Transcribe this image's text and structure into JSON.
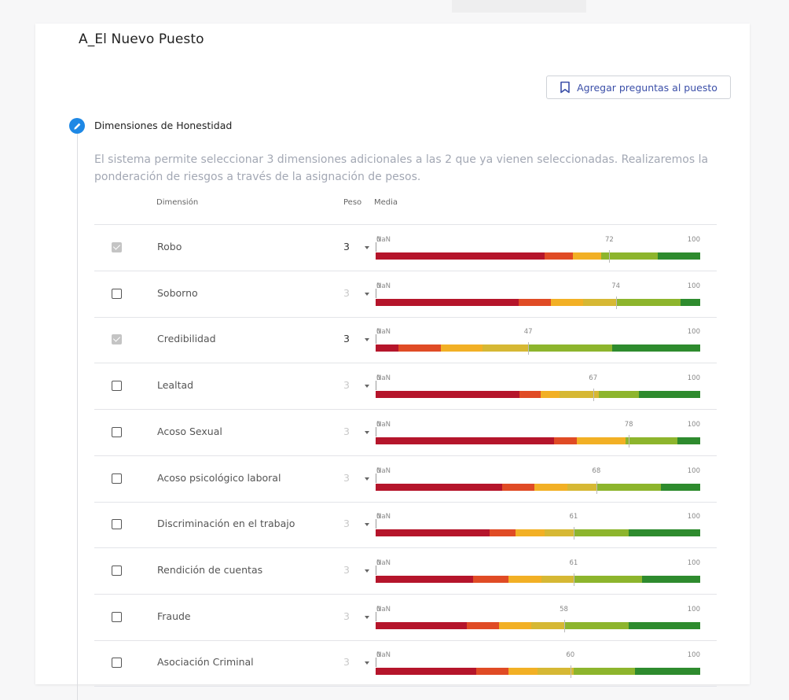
{
  "title": "A_El Nuevo Puesto",
  "add_button": {
    "label": "Agregar preguntas al puesto",
    "icon": "bookmark-icon"
  },
  "section": {
    "icon": "pencil-icon",
    "title": "Dimensiones de Honestidad",
    "description": "El sistema permite seleccionar 3 dimensiones adicionales a las 2 que ya vienen seleccionadas. Realizaremos la ponderación de riesgos a través de la asignación de pesos."
  },
  "table": {
    "headers": {
      "dimension": "Dimensión",
      "peso": "Peso",
      "media": "Media"
    },
    "scale_min_label": "0",
    "nan_label": "NaN",
    "scale_max_label": "100",
    "colors": [
      "#b5152b",
      "#e04b25",
      "#f2b025",
      "#d6b834",
      "#8db52d",
      "#2e8b2e"
    ],
    "rows": [
      {
        "name": "Robo",
        "checked": true,
        "peso": "3",
        "media": "72",
        "segments": [
          48,
          8,
          8,
          0,
          16,
          12
        ]
      },
      {
        "name": "Soborno",
        "checked": false,
        "peso": "3",
        "media": "74",
        "segments": [
          44,
          10,
          10,
          10,
          20,
          6
        ]
      },
      {
        "name": "Credibilidad",
        "checked": true,
        "peso": "3",
        "media": "47",
        "segments": [
          7,
          13,
          13,
          14,
          26,
          27
        ]
      },
      {
        "name": "Lealtad",
        "checked": false,
        "peso": "3",
        "media": "67",
        "segments": [
          47,
          7,
          6,
          13,
          13,
          20
        ]
      },
      {
        "name": "Acoso Sexual",
        "checked": false,
        "peso": "3",
        "media": "78",
        "segments": [
          55,
          7,
          15,
          0,
          16,
          7
        ]
      },
      {
        "name": "Acoso psicológico laboral",
        "checked": false,
        "peso": "3",
        "media": "68",
        "segments": [
          39,
          10,
          10,
          9,
          20,
          12
        ]
      },
      {
        "name": "Discriminación en el trabajo",
        "checked": false,
        "peso": "3",
        "media": "61",
        "segments": [
          35,
          8,
          9,
          9,
          17,
          22
        ]
      },
      {
        "name": "Rendición de cuentas",
        "checked": false,
        "peso": "3",
        "media": "61",
        "segments": [
          30,
          11,
          10,
          10,
          21,
          18
        ]
      },
      {
        "name": "Fraude",
        "checked": false,
        "peso": "3",
        "media": "58",
        "segments": [
          28,
          10,
          10,
          10,
          20,
          22
        ]
      },
      {
        "name": "Asociación Criminal",
        "checked": false,
        "peso": "3",
        "media": "60",
        "segments": [
          31,
          10,
          9,
          11,
          19,
          20
        ]
      }
    ]
  }
}
